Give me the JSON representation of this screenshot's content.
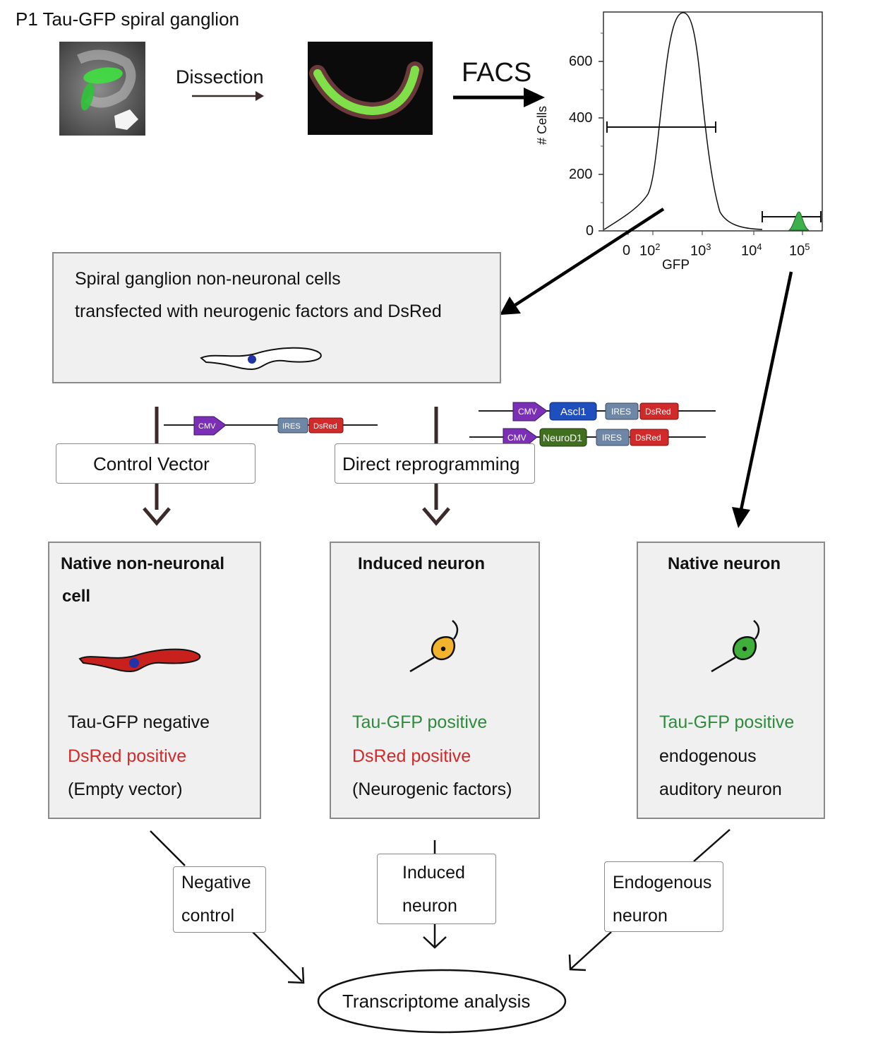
{
  "title": "P1 Tau-GFP spiral ganglion",
  "dissection_label": "Dissection",
  "facs_label": "FACS",
  "facs_plot": {
    "ylabel": "# Cells",
    "xlabel": "GFP",
    "yticks": [
      "600",
      "400",
      "200",
      "0"
    ],
    "xticks": [
      {
        "base": "0",
        "exp": ""
      },
      {
        "base": "10",
        "exp": "2"
      },
      {
        "base": "10",
        "exp": "3"
      },
      {
        "base": "10",
        "exp": "4"
      },
      {
        "base": "10",
        "exp": "5"
      }
    ]
  },
  "sgn_box": {
    "line1": "Spiral ganglion non-neuronal cells",
    "line2": "transfected with neurogenic factors and DsRed"
  },
  "constructs": {
    "cmv": "CMV",
    "ires": "IRES",
    "dsred": "DsRed",
    "ascl1": "Ascl1",
    "neurod1": "NeuroD1"
  },
  "control_vector_label": "Control Vector",
  "direct_reprogramming_label": "Direct reprogramming",
  "panels": {
    "non_neuronal": {
      "title1": "Native non-neuronal",
      "title2": "cell",
      "line1": "Tau-GFP negative",
      "line2": "DsRed positive",
      "line3": "(Empty vector)"
    },
    "induced": {
      "title": "Induced neuron",
      "line1": "Tau-GFP positive",
      "line2": "DsRed positive",
      "line3": "(Neurogenic factors)"
    },
    "native": {
      "title": "Native neuron",
      "line1": "Tau-GFP positive",
      "line2": "endogenous",
      "line3": "auditory neuron"
    }
  },
  "groups": {
    "negative": {
      "line1": "Negative",
      "line2": "control"
    },
    "induced": {
      "line1": "Induced",
      "line2": "neuron"
    },
    "endogenous": {
      "line1": "Endogenous",
      "line2": "neuron"
    }
  },
  "final_label": "Transcriptome analysis",
  "colors": {
    "gfp_green": "#2e8b3e",
    "dsred_red": "#d12a2a",
    "cmv_purple": "#7b2fb5",
    "ascl1_blue": "#1f4fbf",
    "neurod1_green": "#3f6f1f",
    "ires_gray": "#6f87a6"
  }
}
